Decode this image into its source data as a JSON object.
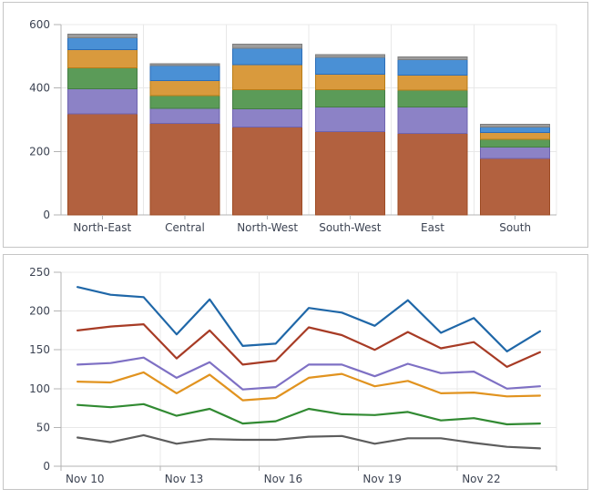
{
  "page": {
    "background": "#ffffff",
    "panel_border_color": "#c5c5c5",
    "label_color": "#3d4453",
    "grid_color": "#e8e8e8",
    "axis_color": "#b3b3b3"
  },
  "chart_data": [
    {
      "type": "bar",
      "stacked": true,
      "title": "",
      "xlabel": "",
      "ylabel": "",
      "legend": "none",
      "grid": true,
      "ylim": [
        0,
        600
      ],
      "yticks": [
        "0",
        "200",
        "400",
        "600"
      ],
      "categories": [
        "North-East",
        "Central",
        "North-West",
        "South-West",
        "East",
        "South"
      ],
      "series": [
        {
          "name": "red",
          "color": "#b2613f",
          "border": "#9d4b23",
          "values": [
            318,
            288,
            277,
            263,
            257,
            178
          ]
        },
        {
          "name": "purple",
          "color": "#8c82c6",
          "border": "#6e63af",
          "values": [
            80,
            48,
            58,
            77,
            83,
            36
          ]
        },
        {
          "name": "green",
          "color": "#5b9b58",
          "border": "#447d43",
          "values": [
            66,
            40,
            60,
            55,
            53,
            24
          ]
        },
        {
          "name": "orange",
          "color": "#d99a3d",
          "border": "#b87c17",
          "values": [
            57,
            48,
            78,
            48,
            47,
            22
          ]
        },
        {
          "name": "blue",
          "color": "#4a90d5",
          "border": "#2b6db8",
          "values": [
            37,
            47,
            53,
            53,
            50,
            17
          ]
        },
        {
          "name": "gray",
          "color": "#9c9c9c",
          "border": "#7e7e7e",
          "values": [
            12,
            6,
            12,
            9,
            8,
            8
          ]
        }
      ]
    },
    {
      "type": "line",
      "title": "",
      "xlabel": "",
      "ylabel": "",
      "legend": "none",
      "grid": true,
      "ylim": [
        0,
        250
      ],
      "yticks": [
        "0",
        "50",
        "100",
        "150",
        "200",
        "250"
      ],
      "x": [
        "Nov 10",
        "Nov 11",
        "Nov 12",
        "Nov 13",
        "Nov 14",
        "Nov 15",
        "Nov 16",
        "Nov 17",
        "Nov 18",
        "Nov 19",
        "Nov 20",
        "Nov 21",
        "Nov 22",
        "Nov 23",
        "Nov 24"
      ],
      "xtick_labels": [
        "Nov 10",
        "Nov 13",
        "Nov 16",
        "Nov 19",
        "Nov 22"
      ],
      "series": [
        {
          "name": "blue",
          "color": "#1f67a8",
          "values": [
            231,
            221,
            218,
            170,
            215,
            155,
            158,
            204,
            198,
            181,
            214,
            172,
            191,
            148,
            174
          ]
        },
        {
          "name": "red",
          "color": "#a73b25",
          "values": [
            175,
            180,
            183,
            139,
            175,
            131,
            136,
            179,
            169,
            150,
            173,
            152,
            160,
            128,
            147
          ]
        },
        {
          "name": "purple",
          "color": "#7e70c4",
          "values": [
            131,
            133,
            140,
            114,
            134,
            99,
            102,
            131,
            131,
            116,
            132,
            120,
            122,
            100,
            103
          ]
        },
        {
          "name": "orange",
          "color": "#e1931f",
          "values": [
            109,
            108,
            121,
            94,
            118,
            85,
            88,
            114,
            119,
            103,
            110,
            94,
            95,
            90,
            91
          ]
        },
        {
          "name": "green",
          "color": "#318a32",
          "values": [
            79,
            76,
            80,
            65,
            74,
            55,
            58,
            74,
            67,
            66,
            70,
            59,
            62,
            54,
            55
          ]
        },
        {
          "name": "gray",
          "color": "#5d5d5d",
          "values": [
            37,
            31,
            40,
            29,
            35,
            34,
            34,
            38,
            39,
            29,
            36,
            36,
            30,
            25,
            23
          ]
        }
      ]
    }
  ]
}
